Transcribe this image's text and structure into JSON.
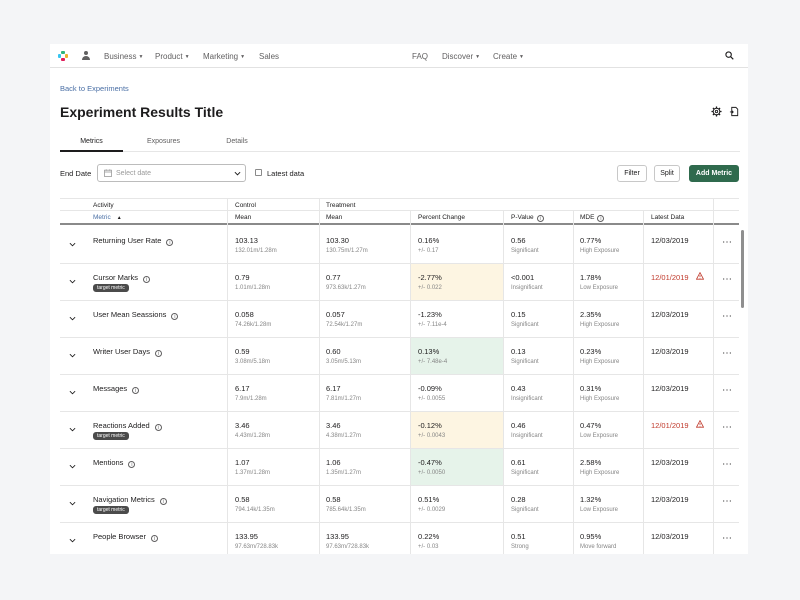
{
  "nav": {
    "items": [
      {
        "label": "Business",
        "dropdown": true
      },
      {
        "label": "Product",
        "dropdown": true
      },
      {
        "label": "Marketing",
        "dropdown": true
      },
      {
        "label": "Sales",
        "dropdown": false
      },
      {
        "label": "FAQ",
        "dropdown": false
      },
      {
        "label": "Discover",
        "dropdown": true
      },
      {
        "label": "Create",
        "dropdown": true
      }
    ],
    "icons": [
      "slack-logo-icon",
      "user-icon",
      "search-icon"
    ]
  },
  "header": {
    "back_link": "Back to Experiments",
    "title": "Experiment Results Title",
    "icons": [
      "gear-icon",
      "export-icon"
    ]
  },
  "tabs": [
    {
      "label": "Metrics",
      "active": true
    },
    {
      "label": "Exposures",
      "active": false
    },
    {
      "label": "Details",
      "active": false
    }
  ],
  "filters": {
    "end_date_label": "End Date",
    "date_placeholder": "Select date",
    "latest_data_label": "Latest data",
    "latest_data_checked": false,
    "filter_button": "Filter",
    "split_button": "Split",
    "add_metric_button": "Add Metric"
  },
  "table": {
    "group_headers": {
      "activity": "Activity",
      "control": "Control",
      "treatment": "Treatment"
    },
    "columns": {
      "metric": "Metric",
      "control_mean": "Mean",
      "treatment_mean": "Mean",
      "percent_change": "Percent Change",
      "p_value": "P-Value",
      "mde": "MDE",
      "latest_data": "Latest Data"
    },
    "rows": [
      {
        "name": "Returning User Rate",
        "badge": "",
        "control_mean": "103.13",
        "control_sub": "132.01m/1.28m",
        "treatment_mean": "103.30",
        "treatment_sub": "130.75m/1.27m",
        "change": "0.16%",
        "change_sub": "+/- 0.17",
        "highlight": "none",
        "p_value": "0.56",
        "p_label": "Significant",
        "mde": "0.77%",
        "mde_label": "High Exposure",
        "latest": "12/03/2019",
        "latest_warning": false
      },
      {
        "name": "Cursor Marks",
        "badge": "target metric",
        "control_mean": "0.79",
        "control_sub": "1.01m/1.28m",
        "treatment_mean": "0.77",
        "treatment_sub": "973.63k/1.27m",
        "change": "-2.77%",
        "change_sub": "+/- 0.022",
        "highlight": "yellow",
        "p_value": "<0.001",
        "p_label": "Insignificant",
        "mde": "1.78%",
        "mde_label": "Low Exposure",
        "latest": "12/01/2019",
        "latest_warning": true
      },
      {
        "name": "User Mean Seassions",
        "badge": "",
        "control_mean": "0.058",
        "control_sub": "74.26k/1.28m",
        "treatment_mean": "0.057",
        "treatment_sub": "72.54k/1.27m",
        "change": "-1.23%",
        "change_sub": "+/- 7.11e-4",
        "highlight": "none",
        "p_value": "0.15",
        "p_label": "Significant",
        "mde": "2.35%",
        "mde_label": "High Exposure",
        "latest": "12/03/2019",
        "latest_warning": false
      },
      {
        "name": "Writer User Days",
        "badge": "",
        "control_mean": "0.59",
        "control_sub": "3.08m/5.18m",
        "treatment_mean": "0.60",
        "treatment_sub": "3.05m/5.13m",
        "change": "0.13%",
        "change_sub": "+/- 7.48e-4",
        "highlight": "green",
        "p_value": "0.13",
        "p_label": "Significant",
        "mde": "0.23%",
        "mde_label": "High Exposure",
        "latest": "12/03/2019",
        "latest_warning": false
      },
      {
        "name": "Messages",
        "badge": "",
        "control_mean": "6.17",
        "control_sub": "7.9m/1.28m",
        "treatment_mean": "6.17",
        "treatment_sub": "7.81m/1.27m",
        "change": "-0.09%",
        "change_sub": "+/- 0.0055",
        "highlight": "none",
        "p_value": "0.43",
        "p_label": "Insignificant",
        "mde": "0.31%",
        "mde_label": "High Exposure",
        "latest": "12/03/2019",
        "latest_warning": false
      },
      {
        "name": "Reactions Added",
        "badge": "target metric",
        "control_mean": "3.46",
        "control_sub": "4.43m/1.28m",
        "treatment_mean": "3.46",
        "treatment_sub": "4.38m/1.27m",
        "change": "-0.12%",
        "change_sub": "+/- 0.0043",
        "highlight": "yellow",
        "p_value": "0.46",
        "p_label": "Insignificant",
        "mde": "0.47%",
        "mde_label": "Low Exposure",
        "latest": "12/01/2019",
        "latest_warning": true
      },
      {
        "name": "Mentions",
        "badge": "",
        "control_mean": "1.07",
        "control_sub": "1.37m/1.28m",
        "treatment_mean": "1.06",
        "treatment_sub": "1.35m/1.27m",
        "change": "-0.47%",
        "change_sub": "+/- 0.0050",
        "highlight": "green",
        "p_value": "0.61",
        "p_label": "Significant",
        "mde": "2.58%",
        "mde_label": "High Exposure",
        "latest": "12/03/2019",
        "latest_warning": false
      },
      {
        "name": "Navigation Metrics",
        "badge": "target metric",
        "control_mean": "0.58",
        "control_sub": "794.14k/1.35m",
        "treatment_mean": "0.58",
        "treatment_sub": "785.64k/1.35m",
        "change": "0.51%",
        "change_sub": "+/- 0.0029",
        "highlight": "none",
        "p_value": "0.28",
        "p_label": "Significant",
        "mde": "1.32%",
        "mde_label": "Low Exposure",
        "latest": "12/03/2019",
        "latest_warning": false
      },
      {
        "name": "People Browser",
        "badge": "",
        "control_mean": "133.95",
        "control_sub": "97.63m/728.83k",
        "treatment_mean": "133.95",
        "treatment_sub": "97.63m/728.83k",
        "change": "0.22%",
        "change_sub": "+/- 0.03",
        "highlight": "none",
        "p_value": "0.51",
        "p_label": "Strong",
        "mde": "0.95%",
        "mde_label": "Move forward",
        "latest": "12/03/2019",
        "latest_warning": false
      }
    ]
  },
  "colors": {
    "accent_green": "#2f6a4d",
    "link_blue": "#4a6fa5",
    "highlight_yellow": "#fdf5e2",
    "highlight_green": "#e6f3ea",
    "warning_red": "#c0392b"
  }
}
